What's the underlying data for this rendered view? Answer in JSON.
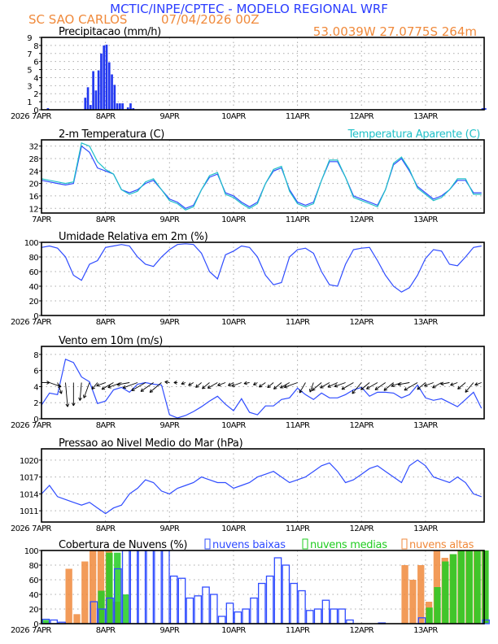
{
  "header": {
    "title": "MCTIC/INPE/CPTEC - MODELO REGIONAL WRF",
    "station": "SC SAO CARLOS",
    "run": "07/04/2026 00Z",
    "location": "53.0039W 27.0775S 264m"
  },
  "colors": {
    "title": "#2a3cff",
    "orange": "#f08a3c",
    "line": "#2f4cff",
    "apparent": "#20c0c8",
    "green": "#22cc22",
    "grid": "#aaaaaa"
  },
  "x_axis": {
    "labels": [
      "7APR",
      "8APR",
      "9APR",
      "10APR",
      "11APR",
      "12APR",
      "13APR"
    ],
    "year": "2026",
    "range_hours_note": "",
    "start": "07/00",
    "end": "13/22"
  },
  "chart_data": [
    {
      "id": "precip",
      "type": "bar",
      "title": "Precipitacao (mm/h)",
      "ylim": [
        0,
        9
      ],
      "yticks": [
        0,
        1,
        2,
        3,
        4,
        5,
        6,
        7,
        8,
        9
      ],
      "grid": true,
      "times": [
        "07/02",
        "07/16",
        "07/17",
        "07/18",
        "07/19",
        "07/20",
        "07/21",
        "07/22",
        "07/23",
        "08/00",
        "08/01",
        "08/02",
        "08/03",
        "08/04",
        "08/05",
        "08/06",
        "08/07",
        "08/08",
        "08/09",
        "08/10",
        "13/21",
        "13/22"
      ],
      "values": [
        0.2,
        1.5,
        2.8,
        0.6,
        4.8,
        2.4,
        4.9,
        7.0,
        8.0,
        8.1,
        5.9,
        4.4,
        3.1,
        0.8,
        0.8,
        0.8,
        0.0,
        0.3,
        0.8,
        0.2,
        0.2,
        0.2
      ]
    },
    {
      "id": "temp",
      "type": "line",
      "title": "2-m Temperatura (C)",
      "ylim": [
        10.5,
        34
      ],
      "yticks": [
        12,
        16,
        20,
        24,
        28,
        32
      ],
      "grid": true,
      "series": [
        {
          "name": "",
          "color": "#2f4cff",
          "values": [
            21,
            20.5,
            20,
            19.5,
            20,
            32,
            30,
            25,
            24,
            23,
            18,
            17,
            18,
            20,
            21,
            18,
            15,
            14,
            12,
            13,
            18,
            22,
            23,
            17,
            16,
            14,
            12.5,
            14,
            20,
            24,
            25,
            18,
            14,
            13,
            14,
            21,
            27,
            27,
            22,
            16,
            15,
            14,
            13,
            18,
            26,
            28,
            24,
            19,
            17,
            15,
            16,
            18,
            21,
            21,
            17,
            17
          ]
        },
        {
          "name": "Temperatura Aparente (C)",
          "color": "#20c0c8",
          "values": [
            21.5,
            21,
            20.5,
            20,
            20.5,
            33,
            32,
            27,
            24.5,
            23,
            18,
            16.5,
            17.5,
            20.5,
            21.5,
            18,
            14.5,
            13.5,
            11.5,
            12.5,
            18,
            22.5,
            23.5,
            16.5,
            15.5,
            13.5,
            12,
            13.5,
            20,
            24.5,
            25.5,
            17.5,
            13.5,
            12.5,
            13.5,
            21,
            27.5,
            27.5,
            22,
            15.5,
            14.5,
            13.5,
            12.5,
            18,
            26.5,
            28.5,
            24.5,
            18.5,
            16.5,
            14.5,
            15.5,
            18,
            21.5,
            21.5,
            16.5,
            16.5
          ]
        }
      ]
    },
    {
      "id": "rh",
      "type": "line",
      "title": "Umidade Relativa em 2m (%)",
      "ylim": [
        0,
        100
      ],
      "yticks": [
        0,
        20,
        40,
        60,
        80,
        100
      ],
      "grid": true,
      "series": [
        {
          "name": "",
          "color": "#2f4cff",
          "values": [
            93,
            95,
            92,
            80,
            55,
            48,
            70,
            75,
            93,
            95,
            97,
            95,
            80,
            70,
            67,
            80,
            90,
            97,
            98,
            97,
            85,
            60,
            50,
            83,
            88,
            95,
            93,
            80,
            55,
            42,
            45,
            80,
            90,
            92,
            85,
            60,
            42,
            40,
            70,
            90,
            92,
            93,
            75,
            55,
            40,
            32,
            38,
            55,
            78,
            90,
            88,
            70,
            68,
            80,
            93,
            95
          ]
        }
      ]
    },
    {
      "id": "wind",
      "type": "line",
      "title": "Vento em 10m (m/s)",
      "ylim": [
        0,
        9
      ],
      "yticks": [
        0,
        2,
        4,
        6,
        8
      ],
      "grid": true,
      "series": [
        {
          "name": "",
          "color": "#2f4cff",
          "values": [
            1.7,
            3.2,
            3.0,
            7.4,
            7.0,
            5.2,
            4.6,
            1.9,
            2.2,
            3.6,
            3.9,
            3.3,
            4.3,
            4.5,
            4.3,
            4.2,
            0.5,
            0.1,
            0.4,
            0.9,
            1.5,
            2.2,
            2.8,
            1.8,
            1.0,
            2.5,
            0.8,
            0.5,
            1.6,
            1.6,
            2.4,
            2.6,
            3.8,
            3.0,
            2.4,
            3.2,
            2.6,
            2.6,
            3.0,
            3.6,
            3.9,
            2.8,
            3.3,
            3.3,
            3.2,
            2.6,
            3.0,
            4.2,
            2.6,
            2.3,
            2.5,
            2.0,
            1.5,
            2.4,
            3.3,
            1.3
          ]
        }
      ],
      "direction_deg": [
        90,
        110,
        160,
        175,
        180,
        185,
        200,
        220,
        250,
        240,
        250,
        260,
        250,
        240,
        235,
        230,
        280,
        270,
        250,
        240,
        230,
        230,
        240,
        250,
        240,
        250,
        260,
        240,
        235,
        230,
        230,
        240,
        250,
        210,
        200,
        230,
        240,
        245,
        250,
        240,
        220,
        230,
        240,
        235,
        230,
        250,
        260,
        240,
        230,
        250,
        240,
        260,
        250,
        230,
        220,
        250
      ]
    },
    {
      "id": "pres",
      "type": "line",
      "title": "Pressao ao Nivel Medio do Mar (hPa)",
      "ylim": [
        1009,
        1022
      ],
      "yticks": [
        1011,
        1014,
        1017,
        1020
      ],
      "grid": true,
      "series": [
        {
          "name": "",
          "color": "#2f4cff",
          "values": [
            1014,
            1015.5,
            1013.5,
            1013,
            1012.5,
            1012,
            1012.5,
            1011.5,
            1010.5,
            1011.5,
            1012,
            1014,
            1015,
            1016.5,
            1016,
            1014.5,
            1014,
            1015,
            1015.5,
            1016,
            1017,
            1016.5,
            1016,
            1016,
            1015,
            1015.5,
            1016,
            1017,
            1017.5,
            1018,
            1017,
            1016,
            1016.5,
            1017,
            1018,
            1019,
            1019.5,
            1018,
            1016,
            1016.5,
            1017.5,
            1018.5,
            1019,
            1018,
            1017,
            1016,
            1019,
            1020,
            1019,
            1017,
            1016.5,
            1016,
            1017,
            1016,
            1014,
            1013.5
          ]
        }
      ]
    },
    {
      "id": "cloud",
      "type": "bar",
      "title": "Cobertura de Nuvens (%)",
      "ylim": [
        0,
        100
      ],
      "yticks": [
        0,
        20,
        40,
        60,
        80,
        100
      ],
      "grid": true,
      "series": [
        {
          "name": "nuvens altas",
          "color": "#f08a3c",
          "values": [
            0,
            0,
            0,
            75,
            13,
            85,
            100,
            100,
            100,
            30,
            0,
            0,
            0,
            0,
            0,
            0,
            0,
            0,
            0,
            0,
            0,
            0,
            0,
            0,
            0,
            0,
            0,
            0,
            0,
            0,
            0,
            0,
            0,
            0,
            0,
            0,
            0,
            0,
            0,
            0,
            0,
            0,
            0,
            0,
            0,
            80,
            60,
            80,
            30,
            100,
            90,
            95,
            100,
            100,
            100,
            100
          ]
        },
        {
          "name": "nuvens medias",
          "color": "#22cc22",
          "values": [
            5,
            0,
            0,
            0,
            0,
            0,
            0,
            45,
            97,
            97,
            40,
            0,
            0,
            0,
            0,
            0,
            0,
            0,
            0,
            0,
            0,
            0,
            0,
            0,
            0,
            0,
            0,
            0,
            0,
            0,
            0,
            0,
            0,
            0,
            0,
            0,
            0,
            0,
            0,
            0,
            0,
            0,
            0,
            0,
            0,
            0,
            0,
            0,
            22,
            50,
            85,
            95,
            100,
            100,
            100,
            100
          ]
        },
        {
          "name": "nuvens baixas",
          "color": "#2f4cff",
          "values": [
            6,
            5,
            2,
            0,
            0,
            0,
            30,
            20,
            35,
            75,
            100,
            100,
            100,
            100,
            100,
            100,
            65,
            62,
            35,
            38,
            50,
            40,
            10,
            28,
            16,
            20,
            35,
            55,
            65,
            90,
            80,
            55,
            45,
            18,
            20,
            32,
            20,
            20,
            5,
            0,
            0,
            0,
            1,
            0,
            0,
            0,
            0,
            8,
            0,
            0,
            0,
            0,
            0,
            0,
            0,
            5
          ]
        }
      ]
    }
  ]
}
